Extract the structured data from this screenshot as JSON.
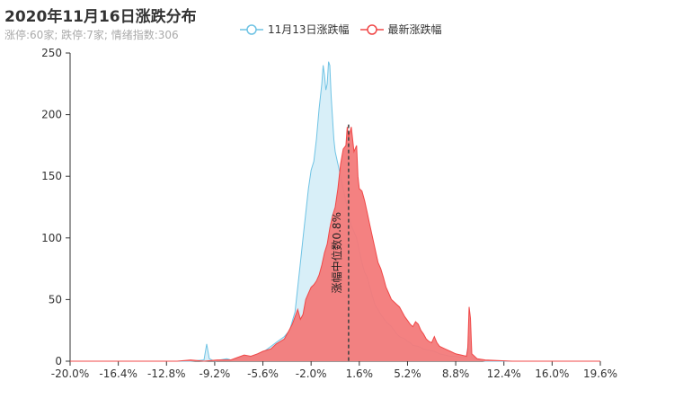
{
  "title": "2020年11月16日涨跌分布",
  "subtitle": "涨停:60家; 跌停:7家; 情绪指数:306",
  "colors": {
    "prev_line": "#6fc3e4",
    "prev_fill": "#d8eff8",
    "curr_line": "#f04848",
    "curr_fill": "#f37a7a",
    "axis": "#333333",
    "median_line": "#444444"
  },
  "chart_data": {
    "type": "area",
    "title": "2020年11月16日涨跌分布",
    "subtitle": "涨停:60家; 跌停:7家; 情绪指数:306",
    "xlim": [
      -20.0,
      19.6
    ],
    "ylim": [
      0,
      250
    ],
    "x_ticks": [
      "-20.0%",
      "-16.4%",
      "-12.8%",
      "-9.2%",
      "-5.6%",
      "-2.0%",
      "1.6%",
      "5.2%",
      "8.8%",
      "12.4%",
      "16.0%",
      "19.6%"
    ],
    "y_ticks": [
      "0",
      "50",
      "100",
      "150",
      "200",
      "250"
    ],
    "legend": [
      "11月13日涨跌幅",
      "最新涨跌幅"
    ],
    "legend_position": "top-center",
    "series": [
      {
        "name": "11月13日涨跌幅",
        "points": [
          [
            -20,
            0
          ],
          [
            -17,
            0
          ],
          [
            -13,
            0
          ],
          [
            -11,
            0
          ],
          [
            -10,
            1
          ],
          [
            -9.8,
            14
          ],
          [
            -9.6,
            2
          ],
          [
            -9.2,
            0
          ],
          [
            -8.8,
            1
          ],
          [
            -8.3,
            2
          ],
          [
            -8,
            1
          ],
          [
            -7.5,
            2
          ],
          [
            -7,
            4
          ],
          [
            -6.6,
            3
          ],
          [
            -6,
            6
          ],
          [
            -5.5,
            8
          ],
          [
            -5,
            12
          ],
          [
            -4.5,
            16
          ],
          [
            -4,
            20
          ],
          [
            -3.6,
            25
          ],
          [
            -3.2,
            40
          ],
          [
            -3,
            60
          ],
          [
            -2.8,
            80
          ],
          [
            -2.6,
            100
          ],
          [
            -2.4,
            120
          ],
          [
            -2.2,
            140
          ],
          [
            -2,
            155
          ],
          [
            -1.8,
            162
          ],
          [
            -1.6,
            180
          ],
          [
            -1.4,
            205
          ],
          [
            -1.2,
            225
          ],
          [
            -1.1,
            240
          ],
          [
            -1,
            232
          ],
          [
            -0.9,
            220
          ],
          [
            -0.8,
            225
          ],
          [
            -0.7,
            243
          ],
          [
            -0.6,
            240
          ],
          [
            -0.5,
            215
          ],
          [
            -0.3,
            180
          ],
          [
            -0.2,
            170
          ],
          [
            0,
            160
          ],
          [
            0.2,
            150
          ],
          [
            0.4,
            140
          ],
          [
            0.6,
            130
          ],
          [
            0.8,
            120
          ],
          [
            1,
            110
          ],
          [
            1.2,
            105
          ],
          [
            1.4,
            100
          ],
          [
            1.6,
            90
          ],
          [
            1.8,
            80
          ],
          [
            2,
            72
          ],
          [
            2.2,
            68
          ],
          [
            2.4,
            60
          ],
          [
            2.6,
            52
          ],
          [
            2.8,
            45
          ],
          [
            3,
            42
          ],
          [
            3.2,
            38
          ],
          [
            3.4,
            35
          ],
          [
            3.6,
            32
          ],
          [
            3.8,
            30
          ],
          [
            4,
            28
          ],
          [
            4.2,
            25
          ],
          [
            4.4,
            22
          ],
          [
            4.6,
            20
          ],
          [
            4.8,
            19
          ],
          [
            5,
            18
          ],
          [
            5.2,
            16
          ],
          [
            5.4,
            15
          ],
          [
            5.6,
            13
          ],
          [
            6,
            12
          ],
          [
            6.4,
            10
          ],
          [
            6.8,
            9
          ],
          [
            7.2,
            8
          ],
          [
            7.6,
            6
          ],
          [
            8,
            5
          ],
          [
            8.4,
            4
          ],
          [
            8.8,
            4
          ],
          [
            9.2,
            3
          ],
          [
            9.6,
            3
          ],
          [
            9.8,
            20
          ],
          [
            10,
            3
          ],
          [
            10.5,
            1
          ],
          [
            11,
            0
          ],
          [
            14,
            0
          ],
          [
            19.6,
            0
          ]
        ]
      },
      {
        "name": "最新涨跌幅",
        "points": [
          [
            -20,
            0
          ],
          [
            -18,
            0
          ],
          [
            -15,
            0
          ],
          [
            -12,
            0
          ],
          [
            -11,
            1
          ],
          [
            -10,
            0
          ],
          [
            -9,
            1
          ],
          [
            -8,
            1
          ],
          [
            -7.5,
            3
          ],
          [
            -7,
            5
          ],
          [
            -6.5,
            4
          ],
          [
            -6,
            6
          ],
          [
            -5.6,
            8
          ],
          [
            -5,
            10
          ],
          [
            -4.6,
            14
          ],
          [
            -4,
            18
          ],
          [
            -3.7,
            24
          ],
          [
            -3.4,
            30
          ],
          [
            -3.2,
            36
          ],
          [
            -3,
            42
          ],
          [
            -2.8,
            34
          ],
          [
            -2.6,
            38
          ],
          [
            -2.4,
            50
          ],
          [
            -2.2,
            55
          ],
          [
            -2,
            60
          ],
          [
            -1.8,
            62
          ],
          [
            -1.6,
            65
          ],
          [
            -1.4,
            70
          ],
          [
            -1.2,
            78
          ],
          [
            -1,
            88
          ],
          [
            -0.8,
            95
          ],
          [
            -0.6,
            108
          ],
          [
            -0.4,
            118
          ],
          [
            -0.2,
            125
          ],
          [
            0,
            140
          ],
          [
            0.2,
            160
          ],
          [
            0.4,
            172
          ],
          [
            0.6,
            175
          ],
          [
            0.7,
            190
          ],
          [
            0.8,
            182
          ],
          [
            1,
            190
          ],
          [
            1.2,
            170
          ],
          [
            1.4,
            175
          ],
          [
            1.5,
            150
          ],
          [
            1.6,
            140
          ],
          [
            1.8,
            138
          ],
          [
            2,
            130
          ],
          [
            2.2,
            120
          ],
          [
            2.4,
            110
          ],
          [
            2.6,
            100
          ],
          [
            2.8,
            90
          ],
          [
            3,
            80
          ],
          [
            3.2,
            75
          ],
          [
            3.4,
            68
          ],
          [
            3.6,
            60
          ],
          [
            3.8,
            55
          ],
          [
            4,
            50
          ],
          [
            4.2,
            48
          ],
          [
            4.4,
            46
          ],
          [
            4.6,
            44
          ],
          [
            4.8,
            40
          ],
          [
            5,
            36
          ],
          [
            5.2,
            33
          ],
          [
            5.4,
            30
          ],
          [
            5.6,
            28
          ],
          [
            5.8,
            32
          ],
          [
            6,
            30
          ],
          [
            6.2,
            25
          ],
          [
            6.4,
            22
          ],
          [
            6.6,
            18
          ],
          [
            6.8,
            16
          ],
          [
            7,
            15
          ],
          [
            7.2,
            20
          ],
          [
            7.4,
            15
          ],
          [
            7.6,
            12
          ],
          [
            8,
            10
          ],
          [
            8.4,
            8
          ],
          [
            8.8,
            6
          ],
          [
            9.2,
            5
          ],
          [
            9.6,
            4
          ],
          [
            9.7,
            10
          ],
          [
            9.8,
            44
          ],
          [
            9.9,
            35
          ],
          [
            10,
            6
          ],
          [
            10.4,
            2
          ],
          [
            11,
            1
          ],
          [
            13,
            0
          ],
          [
            16,
            0
          ],
          [
            19.6,
            0
          ]
        ]
      }
    ],
    "median": {
      "x": 0.8,
      "label": "涨幅中位数0.8%"
    }
  }
}
